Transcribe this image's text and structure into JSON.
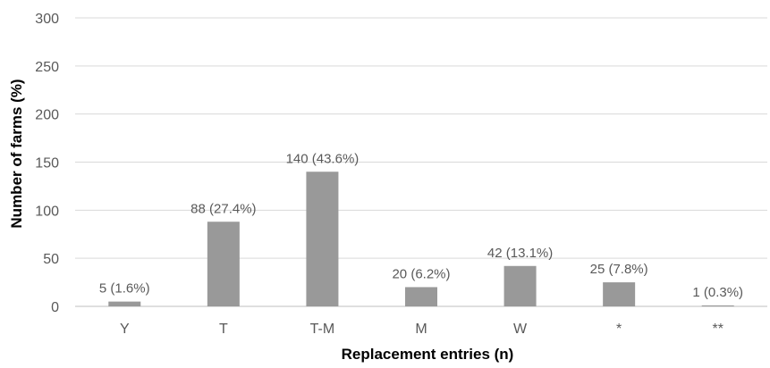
{
  "chart_data": {
    "type": "bar",
    "title": "",
    "xlabel": "Replacement entries (n)",
    "ylabel": "Number of farms (%)",
    "ylim": [
      0,
      300
    ],
    "yticks": [
      "0",
      "50",
      "100",
      "150",
      "200",
      "250",
      "300"
    ],
    "categories": [
      "Y",
      "T",
      "T-M",
      "M",
      "W",
      "*",
      "**"
    ],
    "values": [
      5,
      88,
      140,
      20,
      42,
      25,
      1
    ],
    "data_labels": [
      "5 (1.6%)",
      "88 (27.4%)",
      "140 (43.6%)",
      "20 (6.2%)",
      "42 (13.1%)",
      "25 (7.8%)",
      "1 (0.3%)"
    ],
    "grid": true,
    "legend": "none",
    "bar_color": "#999999"
  }
}
